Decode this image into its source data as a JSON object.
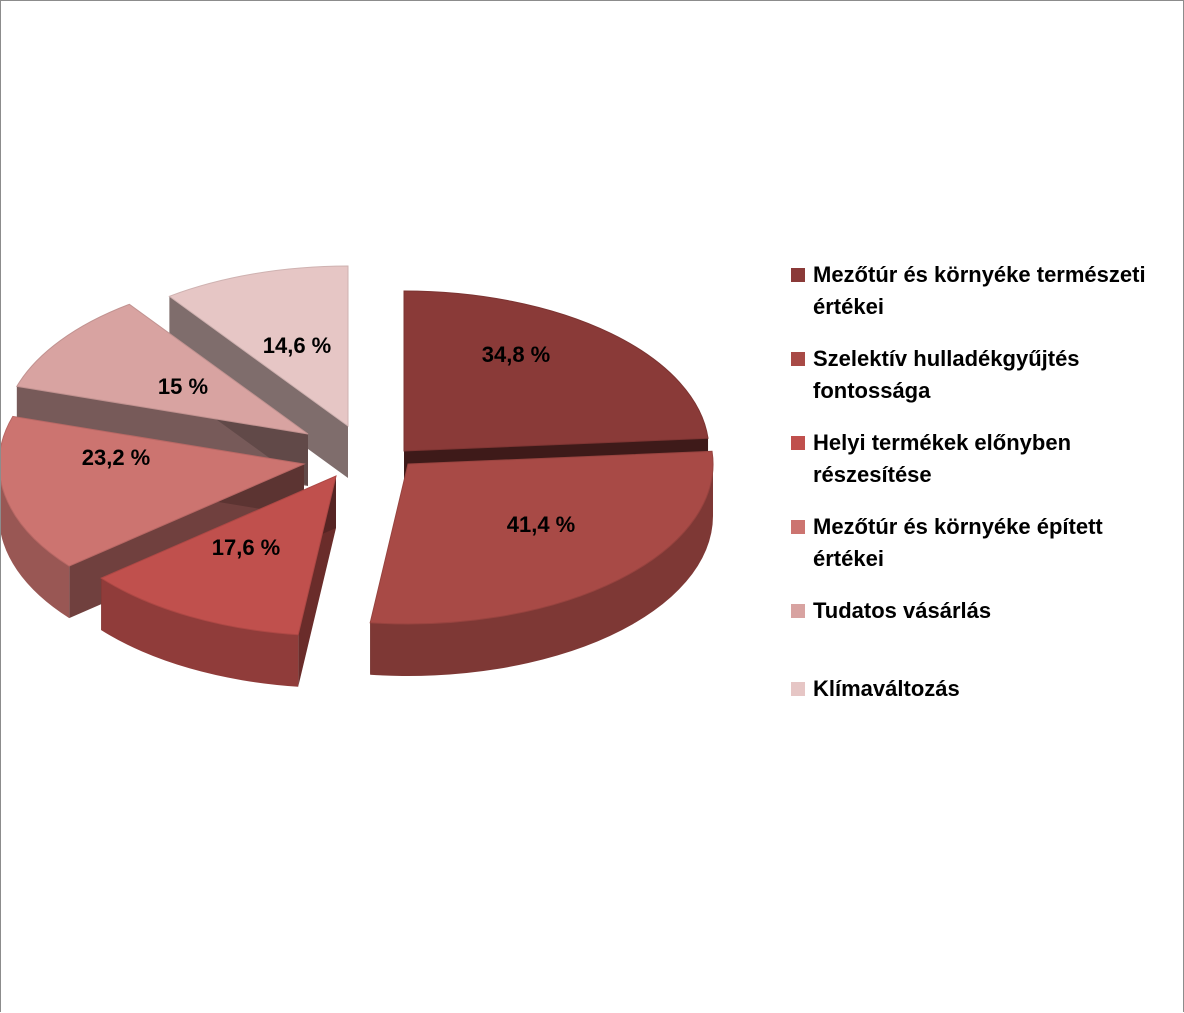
{
  "chart_data": {
    "type": "pie",
    "title": "",
    "slices": [
      {
        "label": "Mezőtúr és környéke természeti értékei",
        "value": 34.8,
        "display": "34,8 %",
        "color": "#8a3a38"
      },
      {
        "label": "Szelektív hulladékgyűjtés fontossága",
        "value": 41.4,
        "display": "41,4 %",
        "color": "#a84a46"
      },
      {
        "label": "Helyi termékek előnyben részesítése",
        "value": 17.6,
        "display": "17,6 %",
        "color": "#c0504d"
      },
      {
        "label": "Mezőtúr és környéke épített értékei",
        "value": 23.2,
        "display": "23,2 %",
        "color": "#cc7470"
      },
      {
        "label": "Tudatos vásárlás",
        "value": 15,
        "display": "15 %",
        "color": "#d8a3a1"
      },
      {
        "label": "Klímaváltozás",
        "value": 14.6,
        "display": "14,6 %",
        "color": "#e6c6c5"
      }
    ],
    "legend_position": "right",
    "exploded": true,
    "style": "3d"
  }
}
